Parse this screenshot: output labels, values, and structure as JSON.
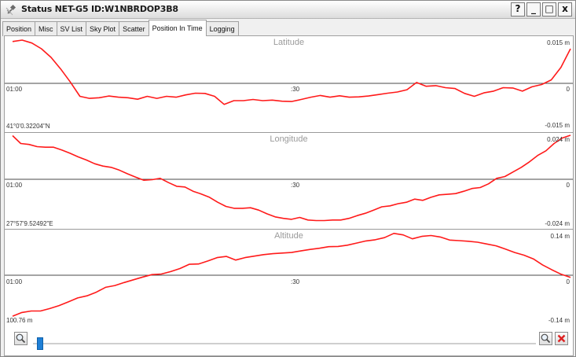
{
  "window": {
    "title": "Status NET-G5 ID:W1NBRDOP3B8",
    "controls": [
      "?",
      "_",
      "□",
      "x"
    ]
  },
  "tabs": [
    "Position",
    "Misc",
    "SV List",
    "Sky Plot",
    "Scatter",
    "Position In Time",
    "Logging"
  ],
  "active_tab": "Position In Time",
  "chart_data": [
    {
      "type": "line",
      "title": "Latitude",
      "x_labels": {
        "start": "01:00",
        "mid": ":30"
      },
      "y_top_label": "0.015 m",
      "y_zero_label": "0",
      "y_bottom_label": "-0.015 m",
      "reference_label": "41°0'0.32204\"N",
      "ylim": [
        -0.015,
        0.015
      ],
      "color": "#ff1a1a",
      "values": [
        0.0145,
        0.015,
        0.014,
        0.012,
        0.009,
        0.005,
        0.0005,
        -0.0045,
        -0.0052,
        -0.005,
        -0.0044,
        -0.0048,
        -0.005,
        -0.0055,
        -0.0045,
        -0.0052,
        -0.0045,
        -0.0048,
        -0.004,
        -0.0034,
        -0.0035,
        -0.0045,
        -0.0073,
        -0.006,
        -0.006,
        -0.0056,
        -0.006,
        -0.0058,
        -0.0062,
        -0.0063,
        -0.0056,
        -0.0048,
        -0.0042,
        -0.0048,
        -0.0043,
        -0.0048,
        -0.0047,
        -0.0044,
        -0.0039,
        -0.0034,
        -0.003,
        -0.0022,
        0.0003,
        -0.001,
        -0.0008,
        -0.0015,
        -0.0018,
        -0.0035,
        -0.0045,
        -0.0033,
        -0.0027,
        -0.0015,
        -0.0016,
        -0.0027,
        -0.0012,
        -0.0004,
        0.0012,
        0.0055,
        0.012
      ]
    },
    {
      "type": "line",
      "title": "Longitude",
      "x_labels": {
        "start": "01:00",
        "mid": ":30"
      },
      "y_top_label": "0.024 m",
      "y_zero_label": "0",
      "y_bottom_label": "-0.024 m",
      "reference_label": "27°57'9.52492\"E",
      "ylim": [
        -0.024,
        0.024
      ],
      "color": "#ff1a1a",
      "values": [
        0.0238,
        0.0195,
        0.019,
        0.0178,
        0.0175,
        0.0175,
        0.016,
        0.0142,
        0.0122,
        0.0105,
        0.0085,
        0.0072,
        0.0065,
        0.005,
        0.003,
        0.0012,
        -0.0005,
        -0.0002,
        0.0005,
        -0.0018,
        -0.0038,
        -0.0042,
        -0.0065,
        -0.008,
        -0.0098,
        -0.0125,
        -0.0148,
        -0.0158,
        -0.0158,
        -0.0155,
        -0.0168,
        -0.0188,
        -0.0205,
        -0.0213,
        -0.0218,
        -0.0208,
        -0.0222,
        -0.0225,
        -0.0225,
        -0.0222,
        -0.0222,
        -0.0213,
        -0.0198,
        -0.0185,
        -0.0168,
        -0.015,
        -0.0145,
        -0.0133,
        -0.0125,
        -0.0108,
        -0.0115,
        -0.0098,
        -0.0085,
        -0.0082,
        -0.0078,
        -0.0065,
        -0.005,
        -0.0045,
        -0.0025,
        0.0005,
        0.0015,
        0.004,
        0.0065,
        0.0095,
        0.013,
        0.0155,
        0.0195,
        0.0225,
        0.024
      ]
    },
    {
      "type": "line",
      "title": "Altitude",
      "x_labels": {
        "start": "01:00",
        "mid": ":30"
      },
      "y_top_label": "0.14 m",
      "y_zero_label": "0",
      "y_bottom_label": "-0.14 m",
      "reference_label": "100.76 m",
      "ylim": [
        -0.14,
        0.14
      ],
      "color": "#ff1a1a",
      "values": [
        -0.135,
        -0.123,
        -0.118,
        -0.118,
        -0.11,
        -0.1,
        -0.088,
        -0.075,
        -0.068,
        -0.056,
        -0.04,
        -0.034,
        -0.024,
        -0.015,
        -0.006,
        0.002,
        0.004,
        0.012,
        0.022,
        0.036,
        0.037,
        0.047,
        0.058,
        0.062,
        0.05,
        0.058,
        0.063,
        0.068,
        0.071,
        0.073,
        0.075,
        0.08,
        0.085,
        0.089,
        0.094,
        0.095,
        0.099,
        0.106,
        0.113,
        0.117,
        0.124,
        0.138,
        0.133,
        0.12,
        0.128,
        0.131,
        0.126,
        0.116,
        0.114,
        0.112,
        0.109,
        0.103,
        0.097,
        0.086,
        0.075,
        0.066,
        0.054,
        0.034,
        0.018,
        0.003,
        -0.007
      ]
    }
  ],
  "footer": {
    "zoom_out_icon": "zoom-out-magnifier-icon",
    "zoom_in_icon": "zoom-in-magnifier-icon",
    "close_icon": "red-x-icon",
    "slider_position": 0.01
  }
}
